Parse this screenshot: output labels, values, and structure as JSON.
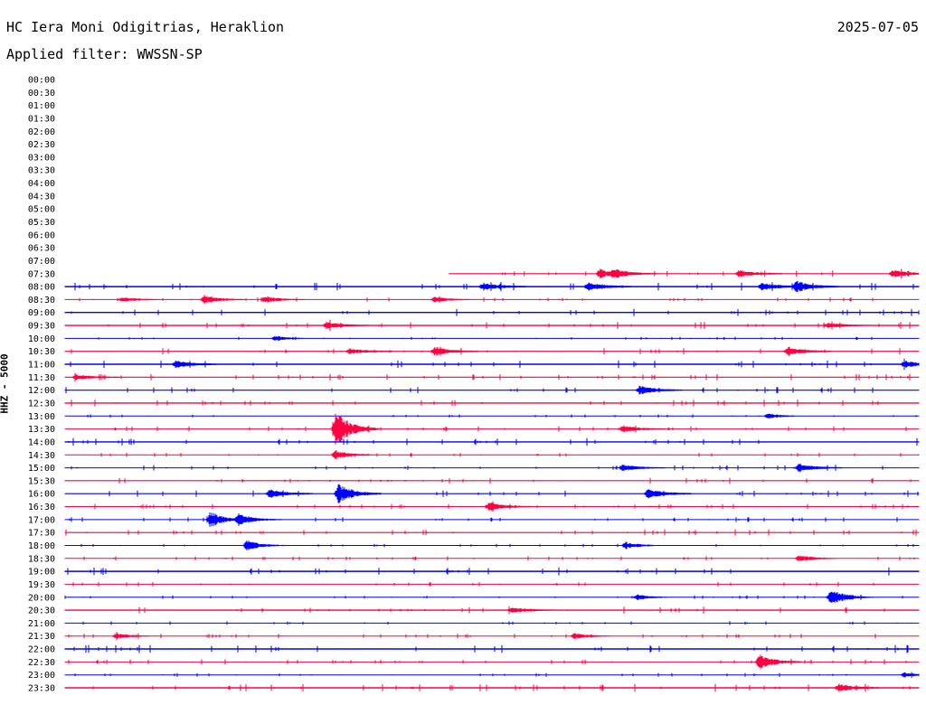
{
  "header": {
    "station": "HC Iera Moni Odigitrias, Heraklion",
    "date": "2025-07-05",
    "filter": "Applied filter: WWSSN-SP"
  },
  "chart_data": {
    "type": "line",
    "title": "HC Iera Moni Odigitrias, Heraklion",
    "ylabel": "HHZ - 5000",
    "row_minutes": 30,
    "colors": {
      "even": "#0000ff",
      "odd": "#ff0040"
    },
    "row_labels": [
      "00:00",
      "00:30",
      "01:00",
      "01:30",
      "02:00",
      "02:30",
      "03:00",
      "03:30",
      "04:00",
      "04:30",
      "05:00",
      "05:30",
      "06:00",
      "06:30",
      "07:00",
      "07:30",
      "08:00",
      "08:30",
      "09:00",
      "09:30",
      "10:00",
      "10:30",
      "11:00",
      "11:30",
      "12:00",
      "12:30",
      "13:00",
      "13:30",
      "14:00",
      "14:30",
      "15:00",
      "15:30",
      "16:00",
      "16:30",
      "17:00",
      "17:30",
      "18:00",
      "18:30",
      "19:00",
      "19:30",
      "20:00",
      "20:30",
      "21:00",
      "21:30",
      "22:00",
      "22:30",
      "23:00",
      "23:30"
    ],
    "data_start": {
      "row": "07:30",
      "minute": 13.5
    },
    "noise_level": {
      "07:30": 1.2,
      "08:00": 1.5,
      "08:30": 0.8,
      "09:00": 1.4,
      "09:30": 1.3,
      "10:00": 0.6,
      "10:30": 1.2,
      "11:00": 1.4,
      "11:30": 1.2,
      "12:00": 1.2,
      "12:30": 1.3,
      "13:00": 0.6,
      "13:30": 1.0,
      "14:00": 1.4,
      "14:30": 0.8,
      "15:00": 1.0,
      "15:30": 1.1,
      "16:00": 1.2,
      "16:30": 1.0,
      "17:00": 0.9,
      "17:30": 1.2,
      "18:00": 0.6,
      "18:30": 0.8,
      "19:00": 1.5,
      "19:30": 0.9,
      "20:00": 0.7,
      "20:30": 1.3,
      "21:00": 0.7,
      "21:30": 0.9,
      "22:00": 1.5,
      "22:30": 1.0,
      "23:00": 0.7,
      "23:30": 1.4
    },
    "events": [
      {
        "row": "07:30",
        "minute": 18.8,
        "amp": 5
      },
      {
        "row": "07:30",
        "minute": 19.3,
        "amp": 4
      },
      {
        "row": "07:30",
        "minute": 23.7,
        "amp": 4
      },
      {
        "row": "07:30",
        "minute": 29.1,
        "amp": 4
      },
      {
        "row": "08:00",
        "minute": 14.7,
        "amp": 4
      },
      {
        "row": "08:00",
        "minute": 18.4,
        "amp": 4
      },
      {
        "row": "08:00",
        "minute": 24.5,
        "amp": 4
      },
      {
        "row": "08:00",
        "minute": 25.7,
        "amp": 6
      },
      {
        "row": "08:30",
        "minute": 2.0,
        "amp": 3
      },
      {
        "row": "08:30",
        "minute": 4.9,
        "amp": 5
      },
      {
        "row": "08:30",
        "minute": 7.0,
        "amp": 4
      },
      {
        "row": "08:30",
        "minute": 13.0,
        "amp": 3
      },
      {
        "row": "09:30",
        "minute": 9.2,
        "amp": 4
      },
      {
        "row": "09:30",
        "minute": 26.8,
        "amp": 3
      },
      {
        "row": "10:00",
        "minute": 7.4,
        "amp": 3
      },
      {
        "row": "10:30",
        "minute": 10.0,
        "amp": 3
      },
      {
        "row": "10:30",
        "minute": 13.0,
        "amp": 5
      },
      {
        "row": "10:30",
        "minute": 25.4,
        "amp": 5
      },
      {
        "row": "11:00",
        "minute": 3.9,
        "amp": 4
      },
      {
        "row": "11:00",
        "minute": 29.5,
        "amp": 4
      },
      {
        "row": "11:30",
        "minute": 0.4,
        "amp": 3
      },
      {
        "row": "12:00",
        "minute": 20.2,
        "amp": 5
      },
      {
        "row": "13:00",
        "minute": 24.7,
        "amp": 3
      },
      {
        "row": "13:30",
        "minute": 9.5,
        "amp": 22
      },
      {
        "row": "13:30",
        "minute": 19.6,
        "amp": 4
      },
      {
        "row": "14:30",
        "minute": 9.5,
        "amp": 5
      },
      {
        "row": "15:00",
        "minute": 19.6,
        "amp": 4
      },
      {
        "row": "15:00",
        "minute": 25.8,
        "amp": 5
      },
      {
        "row": "16:00",
        "minute": 7.2,
        "amp": 5
      },
      {
        "row": "16:00",
        "minute": 9.6,
        "amp": 11
      },
      {
        "row": "16:00",
        "minute": 20.5,
        "amp": 6
      },
      {
        "row": "16:30",
        "minute": 14.9,
        "amp": 5
      },
      {
        "row": "17:00",
        "minute": 5.1,
        "amp": 9
      },
      {
        "row": "17:00",
        "minute": 6.1,
        "amp": 6
      },
      {
        "row": "18:00",
        "minute": 6.4,
        "amp": 6
      },
      {
        "row": "18:00",
        "minute": 19.7,
        "amp": 4
      },
      {
        "row": "18:30",
        "minute": 25.8,
        "amp": 4
      },
      {
        "row": "20:00",
        "minute": 26.9,
        "amp": 10
      },
      {
        "row": "20:00",
        "minute": 20.1,
        "amp": 3
      },
      {
        "row": "20:30",
        "minute": 15.7,
        "amp": 3
      },
      {
        "row": "21:30",
        "minute": 1.8,
        "amp": 3
      },
      {
        "row": "21:30",
        "minute": 17.9,
        "amp": 3
      },
      {
        "row": "22:30",
        "minute": 24.4,
        "amp": 9
      },
      {
        "row": "23:00",
        "minute": 29.5,
        "amp": 3
      },
      {
        "row": "23:30",
        "minute": 27.2,
        "amp": 4
      }
    ]
  }
}
